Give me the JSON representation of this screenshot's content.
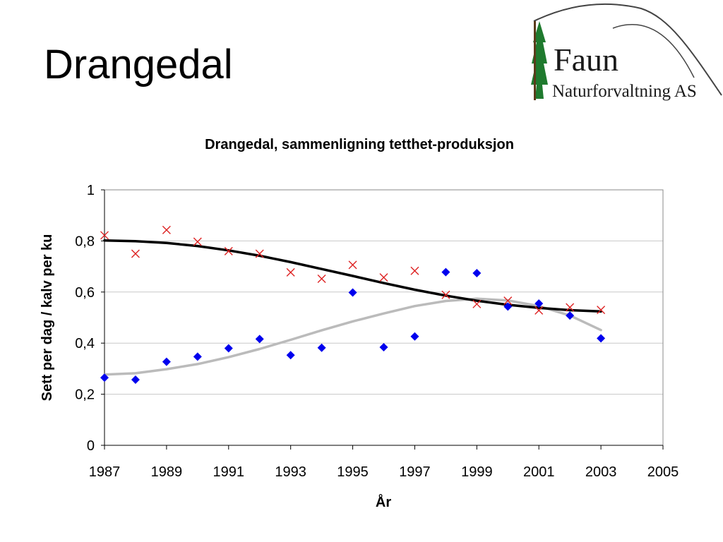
{
  "slide": {
    "title": "Drangedal"
  },
  "logo": {
    "line1": "Faun",
    "line2": "Naturforvaltning AS"
  },
  "colors": {
    "density_marker": "#0000ee",
    "production_marker": "#dd2222",
    "density_trend": "#bbbbbb",
    "production_trend": "#000000",
    "grid": "#c8c8c8",
    "tree": "#1f7a2e"
  },
  "chart_data": {
    "type": "scatter",
    "title": "Drangedal, sammenligning tetthet-produksjon",
    "xlabel": "År",
    "ylabel": "Sett per dag / kalv per ku",
    "xlim": [
      1987,
      2005
    ],
    "ylim": [
      0,
      1
    ],
    "xticks": [
      1987,
      1989,
      1991,
      1993,
      1995,
      1997,
      1999,
      2001,
      2003,
      2005
    ],
    "yticks": [
      0,
      0.2,
      0.4,
      0.6,
      0.8,
      1
    ],
    "ytick_labels": [
      "0",
      "0,2",
      "0,4",
      "0,6",
      "0,8",
      "1"
    ],
    "grid": "horizontal",
    "legend": "none",
    "series": [
      {
        "marker": "diamond",
        "color": "#0000ee",
        "x": [
          1987,
          1988,
          1989,
          1990,
          1991,
          1992,
          1993,
          1994,
          1995,
          1996,
          1997,
          1998,
          1999,
          2000,
          2001,
          2002,
          2003
        ],
        "y": [
          0.265,
          0.257,
          0.327,
          0.347,
          0.38,
          0.416,
          0.353,
          0.382,
          0.598,
          0.384,
          0.426,
          0.678,
          0.674,
          0.543,
          0.555,
          0.508,
          0.419
        ]
      },
      {
        "marker": "x",
        "color": "#dd2222",
        "x": [
          1987,
          1988,
          1989,
          1990,
          1991,
          1992,
          1993,
          1994,
          1995,
          1996,
          1997,
          1998,
          1999,
          2000,
          2001,
          2002,
          2003
        ],
        "y": [
          0.822,
          0.75,
          0.843,
          0.797,
          0.76,
          0.75,
          0.677,
          0.652,
          0.706,
          0.657,
          0.683,
          0.589,
          0.553,
          0.566,
          0.528,
          0.54,
          0.53
        ]
      }
    ],
    "trendlines": [
      {
        "color": "#bbbbbb",
        "x": [
          1987,
          1988,
          1989,
          1990,
          1991,
          1992,
          1993,
          1994,
          1995,
          1996,
          1997,
          1998,
          1999,
          2000,
          2001,
          2002,
          2003
        ],
        "y": [
          0.277,
          0.282,
          0.298,
          0.318,
          0.345,
          0.377,
          0.413,
          0.45,
          0.485,
          0.516,
          0.545,
          0.565,
          0.574,
          0.567,
          0.545,
          0.508,
          0.451
        ]
      },
      {
        "color": "#000000",
        "x": [
          1987,
          1988,
          1989,
          1990,
          1991,
          1992,
          1993,
          1994,
          1995,
          1996,
          1997,
          1998,
          1999,
          2000,
          2001,
          2002,
          2003
        ],
        "y": [
          0.802,
          0.799,
          0.792,
          0.78,
          0.763,
          0.742,
          0.717,
          0.69,
          0.663,
          0.635,
          0.609,
          0.586,
          0.566,
          0.55,
          0.538,
          0.529,
          0.524
        ]
      }
    ]
  }
}
